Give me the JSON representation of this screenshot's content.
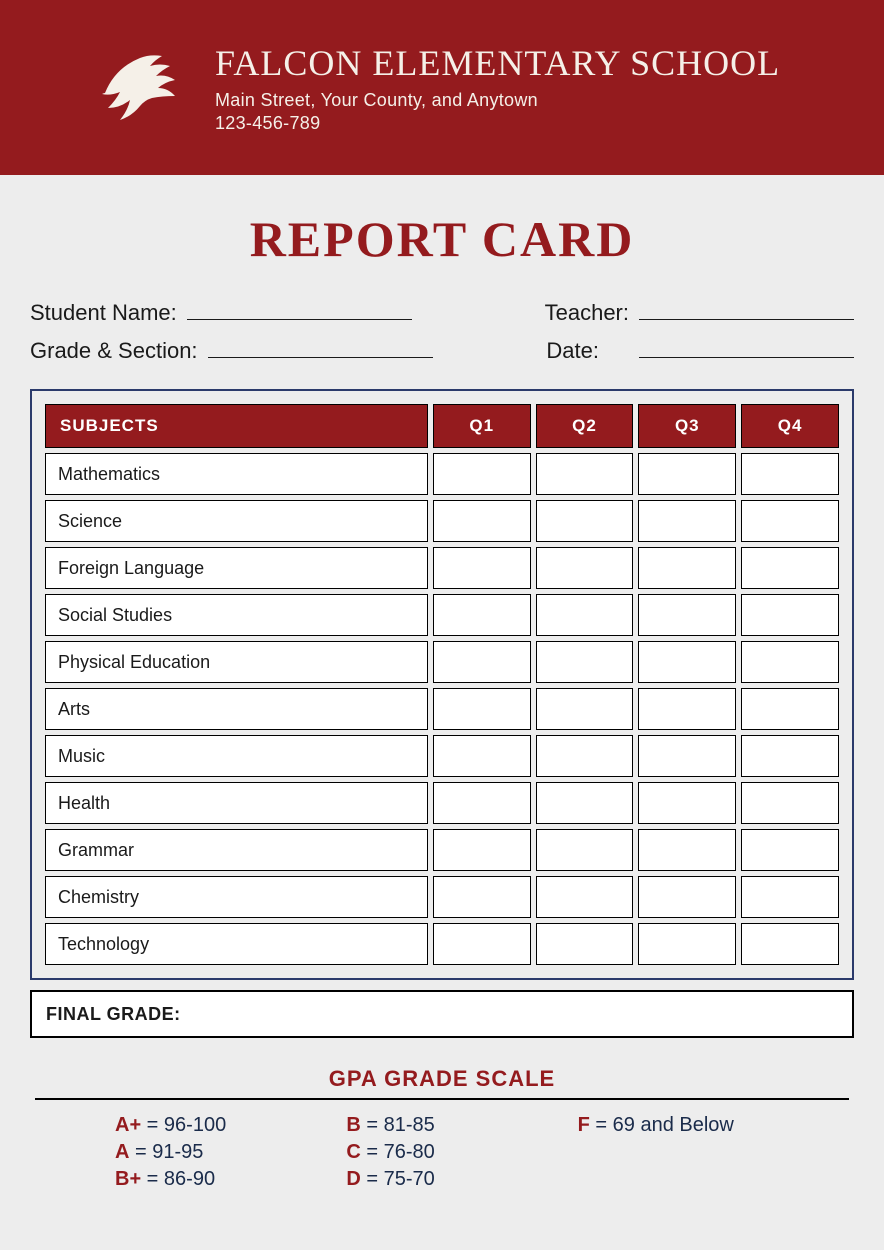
{
  "header": {
    "school_name": "FALCON ELEMENTARY SCHOOL",
    "address": "Main Street, Your County, and Anytown",
    "phone": "123-456-789",
    "logo_name": "falcon-logo",
    "bg_color": "#941b1e",
    "text_color": "#f5f0e8"
  },
  "title": "REPORT CARD",
  "title_color": "#941b1e",
  "info_fields": {
    "student_name_label": "Student Name:",
    "teacher_label": "Teacher:",
    "grade_section_label": "Grade & Section:",
    "date_label": "Date:"
  },
  "table": {
    "frame_border_color": "#2b3a6b",
    "header_bg": "#941b1e",
    "header_text_color": "#ffffff",
    "cell_bg": "#ffffff",
    "cell_border": "#000000",
    "columns": [
      "SUBJECTS",
      "Q1",
      "Q2",
      "Q3",
      "Q4"
    ],
    "subjects": [
      "Mathematics",
      "Science",
      "Foreign Language",
      "Social Studies",
      "Physical Education",
      "Arts",
      "Music",
      "Health",
      "Grammar",
      "Chemistry",
      "Technology"
    ]
  },
  "final_grade_label": "FINAL GRADE:",
  "gpa": {
    "title": "GPA GRADE SCALE",
    "title_color": "#941b1e",
    "letter_color": "#941b1e",
    "range_color": "#1a2b4a",
    "scale": [
      {
        "letter": "A+",
        "range": "96-100"
      },
      {
        "letter": "A",
        "range": "91-95"
      },
      {
        "letter": "B+",
        "range": "86-90"
      },
      {
        "letter": "B",
        "range": "81-85"
      },
      {
        "letter": "C",
        "range": "76-80"
      },
      {
        "letter": "D",
        "range": "75-70"
      },
      {
        "letter": "F",
        "range": "69 and Below"
      }
    ]
  },
  "page_bg": "#ededed"
}
